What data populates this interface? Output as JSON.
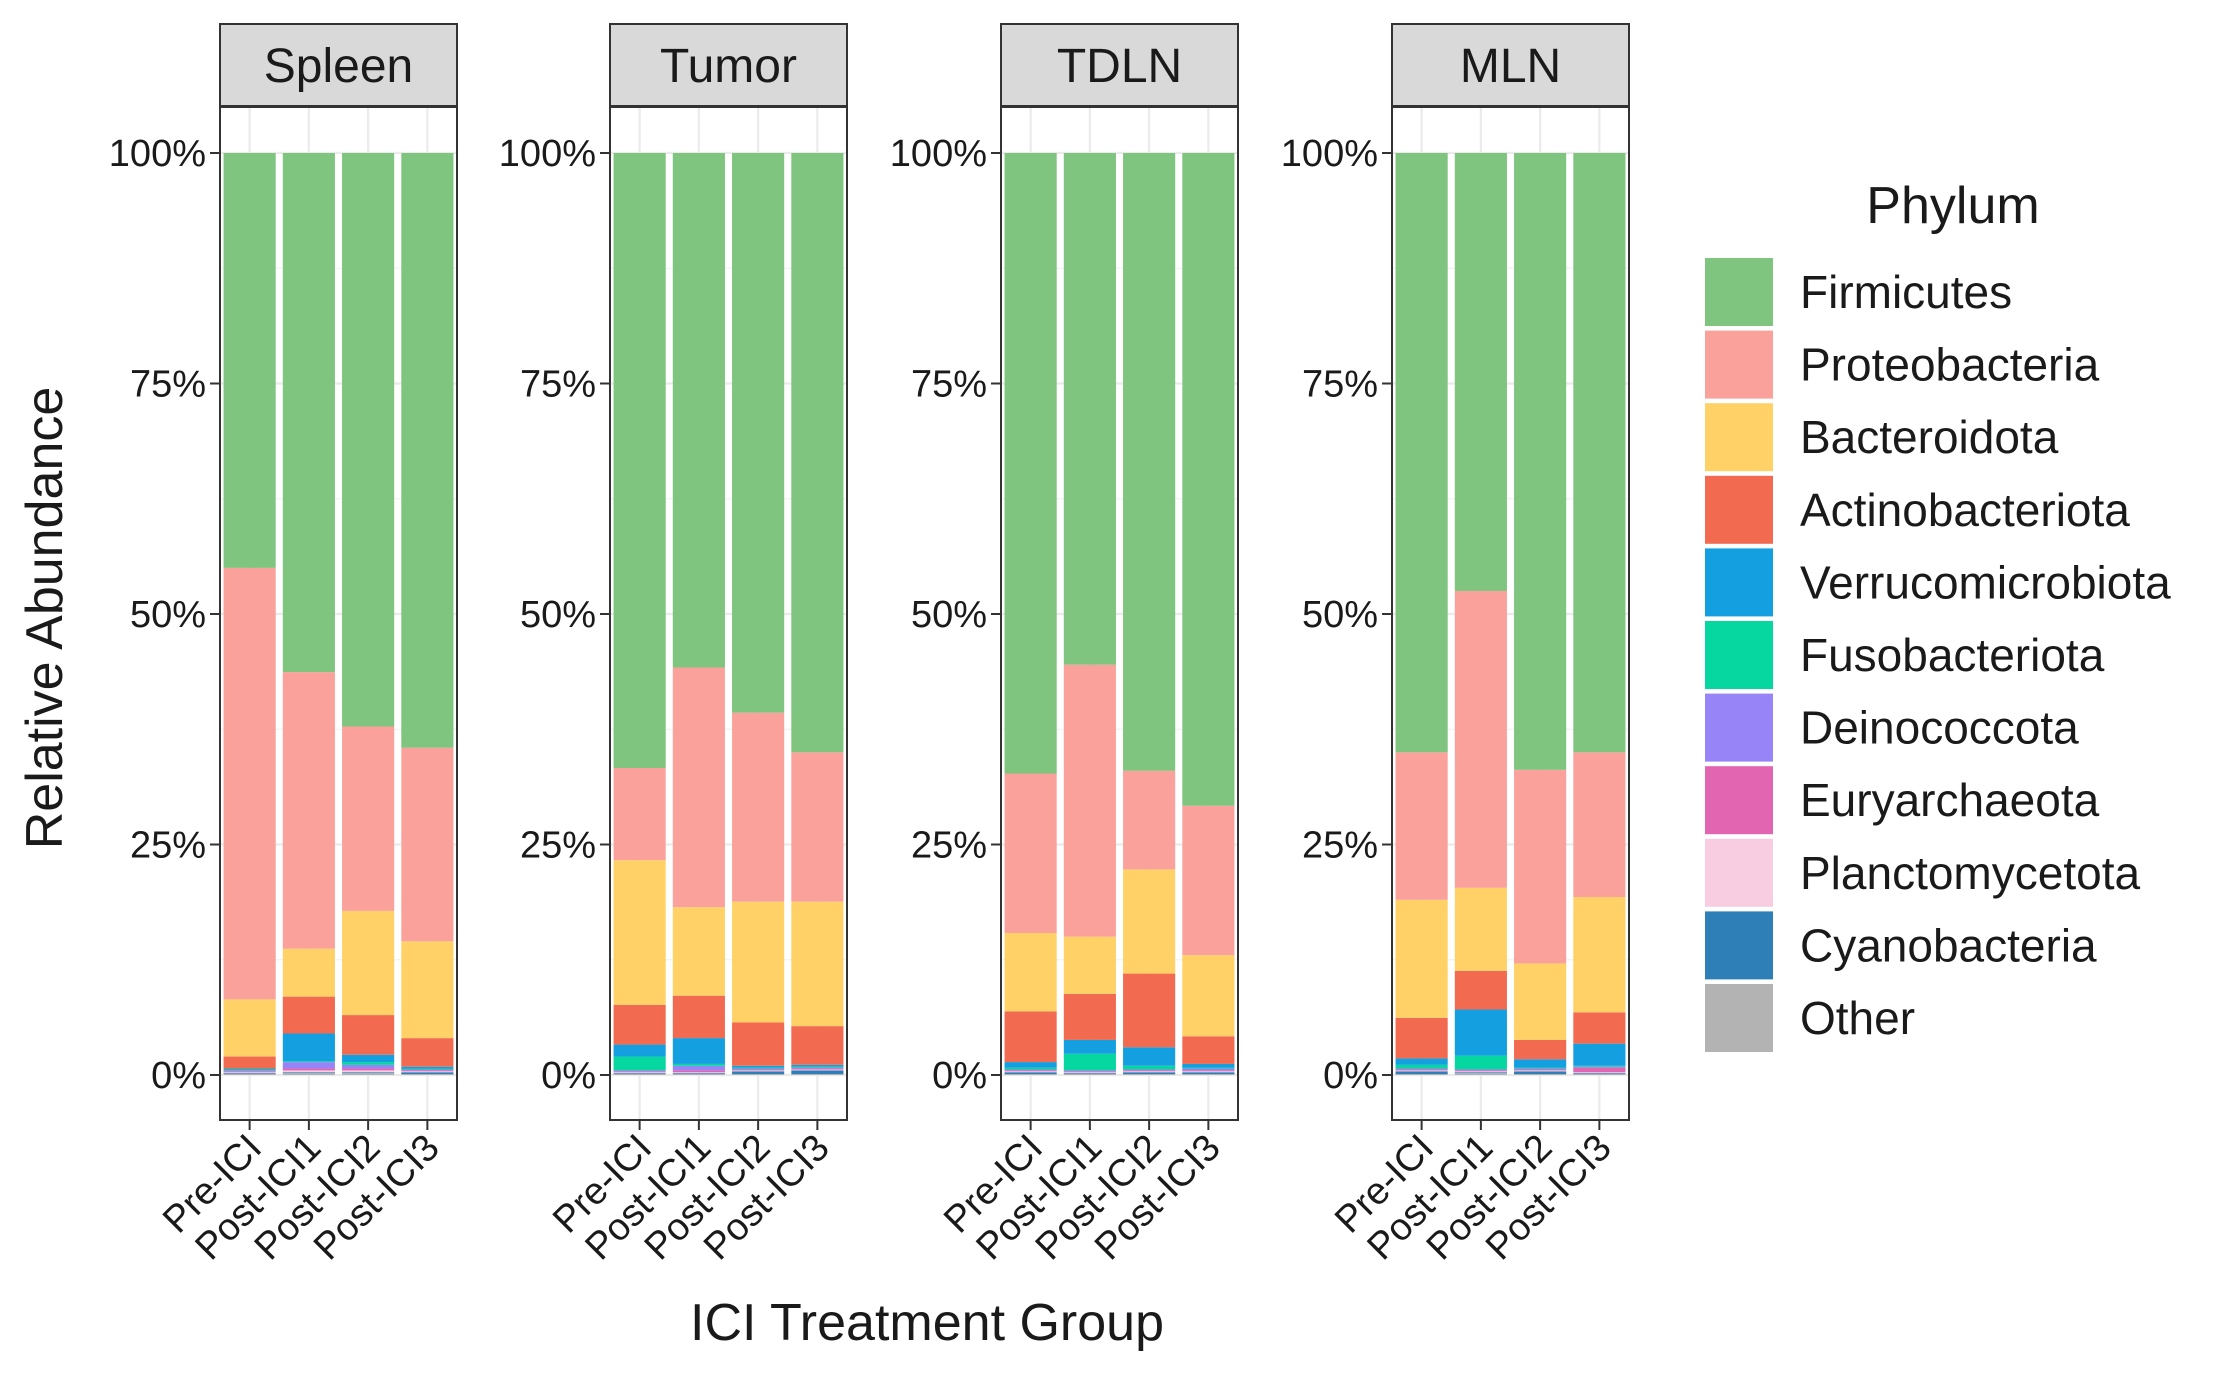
{
  "chart_data": {
    "type": "bar",
    "stacked": true,
    "facets": [
      "Spleen",
      "Tumor",
      "TDLN",
      "MLN"
    ],
    "categories": [
      "Pre-ICI",
      "Post-ICI1",
      "Post-ICI2",
      "Post-ICI3"
    ],
    "xlabel": "ICI Treatment Group",
    "ylabel": "Relative Abundance",
    "ylim": [
      0,
      1
    ],
    "y_ticks": [
      "0%",
      "25%",
      "50%",
      "75%",
      "100%"
    ],
    "y_tick_values": [
      0,
      0.25,
      0.5,
      0.75,
      1.0
    ],
    "grid": true,
    "legend": {
      "title": "Phylum",
      "placement": "right",
      "entries": [
        "Firmicutes",
        "Proteobacteria",
        "Bacteroidota",
        "Actinobacteriota",
        "Verrucomicrobiota",
        "Fusobacteriota",
        "Deinococcota",
        "Euryarchaeota",
        "Planctomycetota",
        "Cyanobacteria",
        "Other"
      ]
    },
    "colors": {
      "Firmicutes": "#7fc47f",
      "Proteobacteria": "#fba19c",
      "Bacteroidota": "#ffd166",
      "Actinobacteriota": "#f26b50",
      "Verrucomicrobiota": "#139fe0",
      "Fusobacteriota": "#06d6a0",
      "Deinococcota": "#9784f7",
      "Euryarchaeota": "#e265b1",
      "Planctomycetota": "#f8cde2",
      "Cyanobacteria": "#2e7fb8",
      "Other": "#b3b3b3"
    },
    "series_order": [
      "Other",
      "Cyanobacteria",
      "Planctomycetota",
      "Euryarchaeota",
      "Deinococcota",
      "Fusobacteriota",
      "Verrucomicrobiota",
      "Actinobacteriota",
      "Bacteroidota",
      "Proteobacteria",
      "Firmicutes"
    ],
    "panels": [
      {
        "facet": "Spleen",
        "bars": [
          {
            "Other": 0.001,
            "Cyanobacteria": 0.001,
            "Planctomycetota": 0.001,
            "Euryarchaeota": 0.001,
            "Deinococcota": 0.001,
            "Fusobacteriota": 0.001,
            "Verrucomicrobiota": 0.001,
            "Actinobacteriota": 0.013,
            "Bacteroidota": 0.062,
            "Proteobacteria": 0.468,
            "Firmicutes": 0.45
          },
          {
            "Other": 0.002,
            "Cyanobacteria": 0.001,
            "Planctomycetota": 0.002,
            "Euryarchaeota": 0.002,
            "Deinococcota": 0.007,
            "Fusobacteriota": 0.001,
            "Verrucomicrobiota": 0.03,
            "Actinobacteriota": 0.04,
            "Bacteroidota": 0.052,
            "Proteobacteria": 0.3,
            "Firmicutes": 0.563
          },
          {
            "Other": 0.002,
            "Cyanobacteria": 0.001,
            "Planctomycetota": 0.002,
            "Euryarchaeota": 0.002,
            "Deinococcota": 0.004,
            "Fusobacteriota": 0.003,
            "Verrucomicrobiota": 0.008,
            "Actinobacteriota": 0.043,
            "Bacteroidota": 0.113,
            "Proteobacteria": 0.2,
            "Firmicutes": 0.622
          },
          {
            "Other": 0.001,
            "Cyanobacteria": 0.002,
            "Planctomycetota": 0.001,
            "Euryarchaeota": 0.001,
            "Deinococcota": 0.001,
            "Fusobacteriota": 0.001,
            "Verrucomicrobiota": 0.002,
            "Actinobacteriota": 0.031,
            "Bacteroidota": 0.105,
            "Proteobacteria": 0.21,
            "Firmicutes": 0.645
          }
        ]
      },
      {
        "facet": "Tumor",
        "bars": [
          {
            "Other": 0.001,
            "Cyanobacteria": 0.001,
            "Planctomycetota": 0.001,
            "Euryarchaeota": 0.001,
            "Deinococcota": 0.001,
            "Fusobacteriota": 0.015,
            "Verrucomicrobiota": 0.013,
            "Actinobacteriota": 0.043,
            "Bacteroidota": 0.157,
            "Proteobacteria": 0.1,
            "Firmicutes": 0.667
          },
          {
            "Other": 0.001,
            "Cyanobacteria": 0.001,
            "Planctomycetota": 0.001,
            "Euryarchaeota": 0.002,
            "Deinococcota": 0.005,
            "Fusobacteriota": 0.002,
            "Verrucomicrobiota": 0.028,
            "Actinobacteriota": 0.046,
            "Bacteroidota": 0.096,
            "Proteobacteria": 0.26,
            "Firmicutes": 0.558
          },
          {
            "Other": 0.001,
            "Cyanobacteria": 0.003,
            "Planctomycetota": 0.001,
            "Euryarchaeota": 0.001,
            "Deinococcota": 0.001,
            "Fusobacteriota": 0.001,
            "Verrucomicrobiota": 0.002,
            "Actinobacteriota": 0.047,
            "Bacteroidota": 0.131,
            "Proteobacteria": 0.205,
            "Firmicutes": 0.607
          },
          {
            "Other": 0.001,
            "Cyanobacteria": 0.004,
            "Planctomycetota": 0.001,
            "Euryarchaeota": 0.001,
            "Deinococcota": 0.001,
            "Fusobacteriota": 0.001,
            "Verrucomicrobiota": 0.002,
            "Actinobacteriota": 0.042,
            "Bacteroidota": 0.135,
            "Proteobacteria": 0.162,
            "Firmicutes": 0.65
          }
        ]
      },
      {
        "facet": "TDLN",
        "bars": [
          {
            "Other": 0.001,
            "Cyanobacteria": 0.002,
            "Planctomycetota": 0.001,
            "Euryarchaeota": 0.001,
            "Deinococcota": 0.001,
            "Fusobacteriota": 0.002,
            "Verrucomicrobiota": 0.006,
            "Actinobacteriota": 0.055,
            "Bacteroidota": 0.085,
            "Proteobacteria": 0.173,
            "Firmicutes": 0.673
          },
          {
            "Other": 0.001,
            "Cyanobacteria": 0.001,
            "Planctomycetota": 0.001,
            "Euryarchaeota": 0.001,
            "Deinococcota": 0.001,
            "Fusobacteriota": 0.018,
            "Verrucomicrobiota": 0.015,
            "Actinobacteriota": 0.05,
            "Bacteroidota": 0.062,
            "Proteobacteria": 0.295,
            "Firmicutes": 0.555
          },
          {
            "Other": 0.001,
            "Cyanobacteria": 0.002,
            "Planctomycetota": 0.001,
            "Euryarchaeota": 0.001,
            "Deinococcota": 0.001,
            "Fusobacteriota": 0.004,
            "Verrucomicrobiota": 0.02,
            "Actinobacteriota": 0.08,
            "Bacteroidota": 0.113,
            "Proteobacteria": 0.107,
            "Firmicutes": 0.67
          },
          {
            "Other": 0.001,
            "Cyanobacteria": 0.002,
            "Planctomycetota": 0.001,
            "Euryarchaeota": 0.001,
            "Deinococcota": 0.002,
            "Fusobacteriota": 0.001,
            "Verrucomicrobiota": 0.004,
            "Actinobacteriota": 0.03,
            "Bacteroidota": 0.088,
            "Proteobacteria": 0.162,
            "Firmicutes": 0.708
          }
        ]
      },
      {
        "facet": "MLN",
        "bars": [
          {
            "Other": 0.001,
            "Cyanobacteria": 0.003,
            "Planctomycetota": 0.001,
            "Euryarchaeota": 0.001,
            "Deinococcota": 0.001,
            "Fusobacteriota": 0.004,
            "Verrucomicrobiota": 0.007,
            "Actinobacteriota": 0.044,
            "Bacteroidota": 0.128,
            "Proteobacteria": 0.16,
            "Firmicutes": 0.65
          },
          {
            "Other": 0.002,
            "Cyanobacteria": 0.001,
            "Planctomycetota": 0.001,
            "Euryarchaeota": 0.001,
            "Deinococcota": 0.001,
            "Fusobacteriota": 0.015,
            "Verrucomicrobiota": 0.05,
            "Actinobacteriota": 0.042,
            "Bacteroidota": 0.09,
            "Proteobacteria": 0.322,
            "Firmicutes": 0.475
          },
          {
            "Other": 0.001,
            "Cyanobacteria": 0.003,
            "Planctomycetota": 0.001,
            "Euryarchaeota": 0.001,
            "Deinococcota": 0.001,
            "Fusobacteriota": 0.001,
            "Verrucomicrobiota": 0.009,
            "Actinobacteriota": 0.021,
            "Bacteroidota": 0.083,
            "Proteobacteria": 0.21,
            "Firmicutes": 0.669
          },
          {
            "Other": 0.001,
            "Cyanobacteria": 0.001,
            "Planctomycetota": 0.001,
            "Euryarchaeota": 0.005,
            "Deinococcota": 0.001,
            "Fusobacteriota": 0.001,
            "Verrucomicrobiota": 0.024,
            "Actinobacteriota": 0.034,
            "Bacteroidota": 0.125,
            "Proteobacteria": 0.157,
            "Firmicutes": 0.65
          }
        ]
      }
    ]
  }
}
